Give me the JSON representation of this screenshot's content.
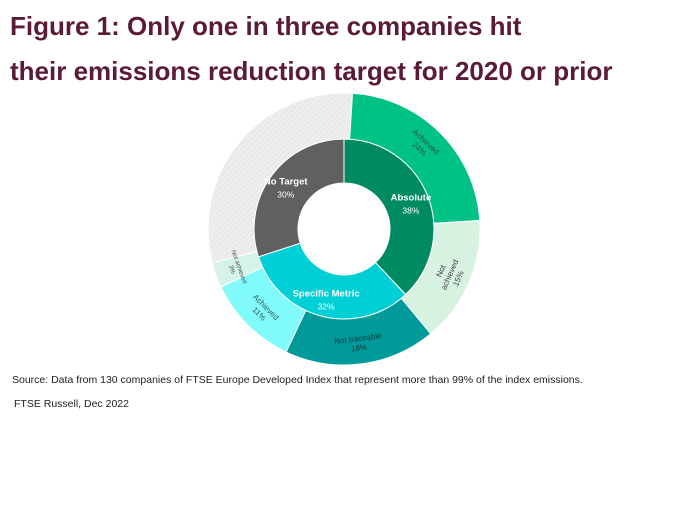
{
  "title_line1": "Figure 1: Only one in three companies hit",
  "title_line2": "their emissions reduction target for 2020 or prior",
  "source_text": "Source: Data from 130 companies of FTSE Europe Developed Index that represent more than 99% of the index emissions.",
  "credit_text": "FTSE Russell, Dec 2022",
  "chart_data": {
    "type": "sunburst",
    "title": "Figure 1: Only one in three companies hit their emissions reduction target for 2020 or prior",
    "inner": [
      {
        "label": "Absolute",
        "value": "38%",
        "pct": 38,
        "color": "#008a62",
        "text_color": "#ffffff"
      },
      {
        "label": "Specific Metric",
        "value": "32%",
        "pct": 32,
        "color": "#00cfd6",
        "text_color": "#ffffff"
      },
      {
        "label": "No Target",
        "value": "30%",
        "pct": 30,
        "color": "#606060",
        "text_color": "#ffffff"
      }
    ],
    "outer": [
      {
        "label": "Achieved",
        "value": "24%",
        "pct": 24,
        "color": "#00c287",
        "text_color": "#2a4f45"
      },
      {
        "label": "Not achieved",
        "value": "15%",
        "pct": 15,
        "color": "#d8f2e2",
        "text_color": "#444444"
      },
      {
        "label": "Not traceable",
        "value": "18%",
        "pct": 18,
        "color": "#009a9a",
        "text_color": "#0b3b3b"
      },
      {
        "label": "Achieved",
        "value": "11%",
        "pct": 11,
        "color": "#80fafa",
        "text_color": "#355a5a"
      },
      {
        "label": "Not achieved",
        "value": "3%",
        "pct": 3,
        "color": "#d6f3ea",
        "text_color": "#444444"
      },
      {
        "label": "",
        "value": "",
        "pct": 30,
        "color": "#ececec",
        "text_color": "#444444"
      }
    ]
  }
}
